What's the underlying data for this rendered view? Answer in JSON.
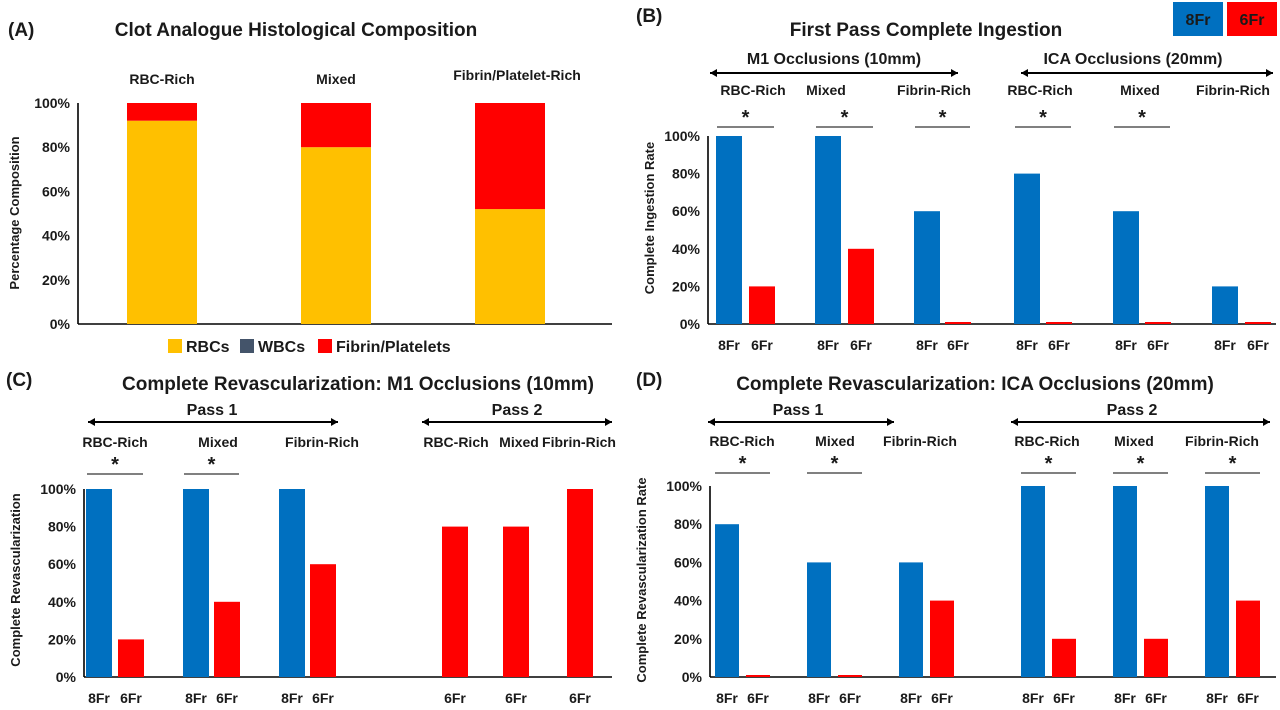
{
  "colors": {
    "rbc": "#FFC000",
    "wbc": "#44546A",
    "fibrin": "#FF0000",
    "fr8": "#0070C0",
    "fr6": "#FF0000"
  },
  "panel_labels": [
    "(A)",
    "(B)",
    "(C)",
    "(D)"
  ],
  "y_ticks": [
    "0%",
    "20%",
    "40%",
    "60%",
    "80%",
    "100%"
  ],
  "chart_data": [
    {
      "id": "A",
      "type": "bar",
      "stacked": true,
      "title": "Clot Analogue Histological Composition",
      "ylabel": "Percentage Composition",
      "ylim": [
        0,
        100
      ],
      "categories": [
        "RBC-Rich",
        "Mixed",
        "Fibrin/Platelet-Rich"
      ],
      "series": [
        {
          "name": "RBCs",
          "values": [
            92,
            80,
            52
          ]
        },
        {
          "name": "WBCs",
          "values": [
            0,
            0,
            0
          ]
        },
        {
          "name": "Fibrin/Platelets",
          "values": [
            8,
            20,
            48
          ]
        }
      ],
      "legend": "bottom"
    },
    {
      "id": "B",
      "type": "bar",
      "title": "First Pass Complete Ingestion",
      "ylabel": "Complete Ingestion Rate",
      "ylim": [
        0,
        100
      ],
      "legend": "top-right",
      "legend_entries": [
        "8Fr",
        "6Fr"
      ],
      "groups": [
        {
          "label": "M1 Occlusions (10mm)",
          "categories": [
            {
              "label": "RBC-Rich",
              "sig": "*",
              "bars": [
                {
                  "name": "8Fr",
                  "value": 100
                },
                {
                  "name": "6Fr",
                  "value": 20
                }
              ]
            },
            {
              "label": "Mixed",
              "sig": "*",
              "bars": [
                {
                  "name": "8Fr",
                  "value": 100
                },
                {
                  "name": "6Fr",
                  "value": 40
                }
              ]
            },
            {
              "label": "Fibrin-Rich",
              "sig": "*",
              "bars": [
                {
                  "name": "8Fr",
                  "value": 60
                },
                {
                  "name": "6Fr",
                  "value": 0
                }
              ]
            }
          ]
        },
        {
          "label": "ICA Occlusions (20mm)",
          "categories": [
            {
              "label": "RBC-Rich",
              "sig": "*",
              "bars": [
                {
                  "name": "8Fr",
                  "value": 80
                },
                {
                  "name": "6Fr",
                  "value": 0
                }
              ]
            },
            {
              "label": "Mixed",
              "sig": "*",
              "bars": [
                {
                  "name": "8Fr",
                  "value": 60
                },
                {
                  "name": "6Fr",
                  "value": 0
                }
              ]
            },
            {
              "label": "Fibrin-Rich",
              "sig": "",
              "bars": [
                {
                  "name": "8Fr",
                  "value": 20
                },
                {
                  "name": "6Fr",
                  "value": 0
                }
              ]
            }
          ]
        }
      ]
    },
    {
      "id": "C",
      "type": "bar",
      "title": "Complete Revascularization: M1 Occlusions (10mm)",
      "ylabel": "Complete Revascularization",
      "ylim": [
        0,
        100
      ],
      "groups": [
        {
          "label": "Pass 1",
          "categories": [
            {
              "label": "RBC-Rich",
              "sig": "*",
              "bars": [
                {
                  "name": "8Fr",
                  "value": 100
                },
                {
                  "name": "6Fr",
                  "value": 20
                }
              ]
            },
            {
              "label": "Mixed",
              "sig": "*",
              "bars": [
                {
                  "name": "8Fr",
                  "value": 100
                },
                {
                  "name": "6Fr",
                  "value": 40
                }
              ]
            },
            {
              "label": "Fibrin-Rich",
              "sig": "",
              "bars": [
                {
                  "name": "8Fr",
                  "value": 100
                },
                {
                  "name": "6Fr",
                  "value": 60
                }
              ]
            }
          ]
        },
        {
          "label": "Pass 2",
          "categories": [
            {
              "label": "RBC-Rich",
              "sig": "",
              "bars": [
                {
                  "name": "6Fr",
                  "value": 80
                }
              ]
            },
            {
              "label": "Mixed",
              "sig": "",
              "bars": [
                {
                  "name": "6Fr",
                  "value": 80
                }
              ]
            },
            {
              "label": "Fibrin-Rich",
              "sig": "",
              "bars": [
                {
                  "name": "6Fr",
                  "value": 100
                }
              ]
            }
          ]
        }
      ]
    },
    {
      "id": "D",
      "type": "bar",
      "title": "Complete Revascularization: ICA Occlusions  (20mm)",
      "ylabel": "Complete Revascularization Rate",
      "ylim": [
        0,
        100
      ],
      "groups": [
        {
          "label": "Pass 1",
          "categories": [
            {
              "label": "RBC-Rich",
              "sig": "*",
              "bars": [
                {
                  "name": "8Fr",
                  "value": 80
                },
                {
                  "name": "6Fr",
                  "value": 0
                }
              ]
            },
            {
              "label": "Mixed",
              "sig": "*",
              "bars": [
                {
                  "name": "8Fr",
                  "value": 60
                },
                {
                  "name": "6Fr",
                  "value": 0
                }
              ]
            },
            {
              "label": "Fibrin-Rich",
              "sig": "",
              "bars": [
                {
                  "name": "8Fr",
                  "value": 60
                },
                {
                  "name": "6Fr",
                  "value": 40
                }
              ]
            }
          ]
        },
        {
          "label": "Pass 2",
          "categories": [
            {
              "label": "RBC-Rich",
              "sig": "*",
              "bars": [
                {
                  "name": "8Fr",
                  "value": 100
                },
                {
                  "name": "6Fr",
                  "value": 20
                }
              ]
            },
            {
              "label": "Mixed",
              "sig": "*",
              "bars": [
                {
                  "name": "8Fr",
                  "value": 100
                },
                {
                  "name": "6Fr",
                  "value": 20
                }
              ]
            },
            {
              "label": "Fibrin-Rich",
              "sig": "*",
              "bars": [
                {
                  "name": "8Fr",
                  "value": 100
                },
                {
                  "name": "6Fr",
                  "value": 40
                }
              ]
            }
          ]
        }
      ]
    }
  ]
}
